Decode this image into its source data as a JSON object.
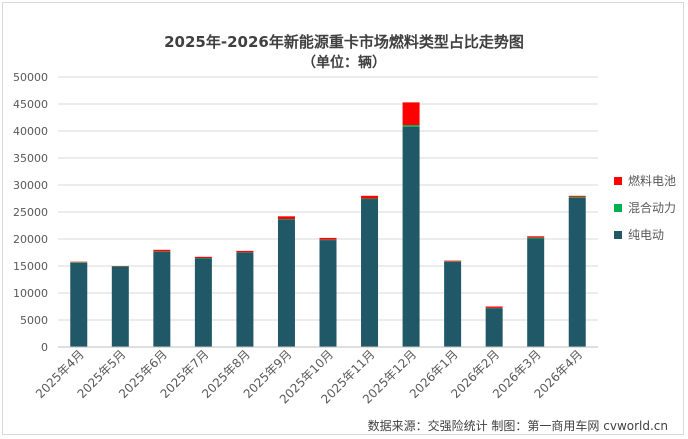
{
  "chart_data": {
    "type": "bar",
    "stacked": true,
    "title": "2025年-2026年新能源重卡市场燃料类型占比走势图",
    "subtitle": "（单位：辆）",
    "categories": [
      "2025年4月",
      "2025年5月",
      "2025年6月",
      "2025年7月",
      "2025年8月",
      "2025年9月",
      "2025年10月",
      "2025年11月",
      "2025年12月",
      "2026年1月",
      "2026年2月",
      "2026年3月",
      "2026年4月"
    ],
    "series": [
      {
        "name": "纯电动",
        "color": "#215868",
        "values": [
          15600,
          14900,
          17600,
          16400,
          17500,
          23600,
          19800,
          27400,
          40800,
          15800,
          7200,
          20100,
          27600
        ]
      },
      {
        "name": "混合动力",
        "color": "#00b050",
        "values": [
          100,
          50,
          100,
          80,
          50,
          100,
          80,
          100,
          300,
          60,
          50,
          150,
          200
        ]
      },
      {
        "name": "燃料电池",
        "color": "#ff0000",
        "values": [
          100,
          50,
          300,
          220,
          250,
          500,
          320,
          500,
          4200,
          140,
          250,
          250,
          200
        ]
      }
    ],
    "yticks": [
      "0",
      "5000",
      "10000",
      "15000",
      "20000",
      "25000",
      "30000",
      "35000",
      "40000",
      "45000",
      "50000"
    ],
    "ylim": [
      0,
      50000
    ],
    "grid": true,
    "legend_position": "right"
  },
  "footer": {
    "source": "数据来源：交强险统计    制图：第一商用车网 cvworld.cn"
  }
}
